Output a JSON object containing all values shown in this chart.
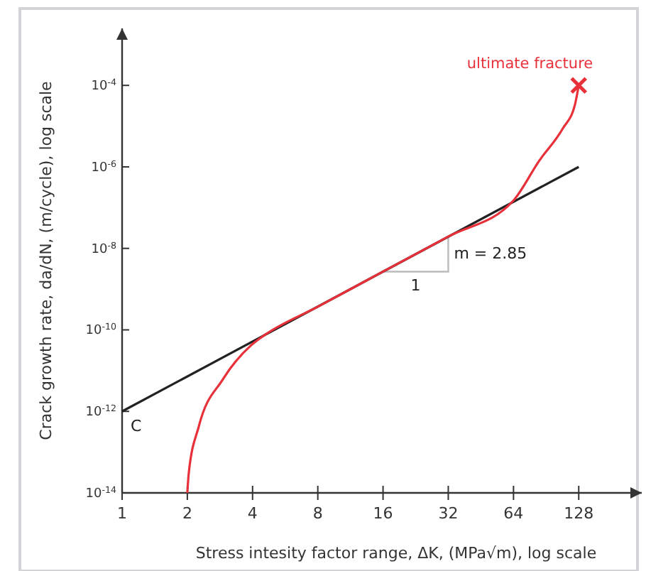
{
  "chart_data": {
    "type": "line",
    "xlabel": "Stress intesity factor range, ΔK, (MPa√m), log scale",
    "ylabel": "Crack growth rate, da/dN, (m/cycle), log scale",
    "log": "xy",
    "grid": false,
    "xlim": [
      1,
      250
    ],
    "ylim": [
      1e-14,
      0.0025
    ],
    "xticks": [
      1,
      2,
      4,
      8,
      16,
      32,
      64,
      128
    ],
    "yticks": [
      {
        "value": 1e-14,
        "label": "10$^{-14}$"
      },
      {
        "value": 1e-12,
        "label": "10$^{-12}$"
      },
      {
        "value": 1e-10,
        "label": "10$^{-10}$"
      },
      {
        "value": 1e-08,
        "label": "10$^{-8}$"
      },
      {
        "value": 1e-06,
        "label": "10$^{-6}$"
      },
      {
        "value": 0.0001,
        "label": "10$^{-4}$"
      }
    ],
    "series": [
      {
        "color": "#222222",
        "x": [
          1,
          128
        ],
        "values": [
          1e-12,
          1e-06
        ]
      },
      {
        "color": "#e8303a",
        "x": [
          2,
          2.03,
          2.26,
          2.91,
          3.94,
          4.5,
          8,
          16,
          32,
          64,
          84,
          108,
          123,
          128
        ],
        "values": [
          1e-14,
          3e-14,
          4.3e-13,
          6e-12,
          4.2e-11,
          7.2e-11,
          3.7e-10,
          2.7e-09,
          1.95e-08,
          1.5e-07,
          1.4e-06,
          8.7e-06,
          3.4e-05,
          0.0001
        ]
      },
      {
        "type": "scatter",
        "marker": "cross",
        "color": "#e8303a",
        "x": [
          128
        ],
        "values": [
          0.0001
        ]
      }
    ],
    "annotations": [
      {
        "text": "ultimate fracture",
        "x": 128,
        "y": 0.0001
      },
      {
        "text": "C",
        "x": 1,
        "y": 1e-12
      },
      {
        "text": "m = 2.85",
        "x": 32,
        "y": 1.95e-08
      },
      "1"
    ]
  }
}
